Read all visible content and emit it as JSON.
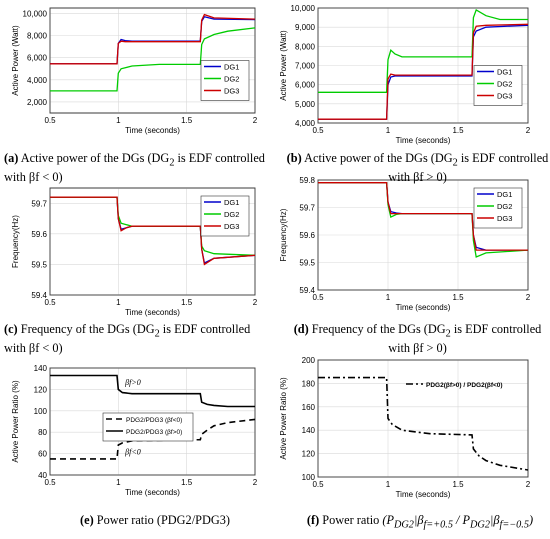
{
  "figure": {
    "captions": [
      {
        "tag": "(a)",
        "line1": "Active power of the DGs (DG",
        "sub": "2",
        "line1b": " is EDF controlled",
        "line2": "with  βf < 0)"
      },
      {
        "tag": "(b)",
        "line1": "Active power of the DGs (DG",
        "sub": "2",
        "line1b": " is EDF controlled",
        "line2": "with  βf > 0)"
      },
      {
        "tag": "(c)",
        "line1": "Frequency of the DGs (DG",
        "sub": "2",
        "line1b": " is EDF controlled",
        "line2": "with  βf < 0)"
      },
      {
        "tag": "(d)",
        "line1": "Frequency of the DGs (DG",
        "sub": "2",
        "line1b": " is EDF controlled",
        "line2": "with  βf > 0)"
      },
      {
        "tag": "(e)",
        "line1": "Power ratio  (PDG2/PDG3)",
        "sub": "",
        "line1b": "",
        "line2": ""
      },
      {
        "tag": "(f)",
        "line1": "Power ratio",
        "sub": "",
        "line1b": "",
        "line2": ""
      }
    ]
  },
  "chart_data": [
    {
      "id": "a",
      "type": "line",
      "xlabel": "Time (seconds)",
      "ylabel": "Active Power (Watt)",
      "xlim": [
        0.5,
        2
      ],
      "ylim": [
        1000,
        10500
      ],
      "xticks": [
        0.5,
        1,
        1.5,
        2
      ],
      "yticks": [
        2000,
        4000,
        6000,
        8000,
        10000
      ],
      "grid": true,
      "legend": "center-right",
      "series": [
        {
          "name": "DG1",
          "color": "#0000cc",
          "x": [
            0.5,
            0.99,
            1.0,
            1.02,
            1.05,
            1.1,
            1.6,
            1.61,
            1.63,
            1.7,
            2.0
          ],
          "y": [
            5450,
            5450,
            7300,
            7650,
            7550,
            7500,
            7500,
            9300,
            9700,
            9500,
            9450
          ]
        },
        {
          "name": "DG2",
          "color": "#00cc00",
          "x": [
            0.5,
            0.99,
            1.0,
            1.02,
            1.1,
            1.3,
            1.6,
            1.61,
            1.63,
            1.7,
            1.8,
            2.0
          ],
          "y": [
            3000,
            3000,
            4600,
            5000,
            5250,
            5400,
            5400,
            7200,
            7700,
            8100,
            8400,
            8700
          ]
        },
        {
          "name": "DG3",
          "color": "#cc0000",
          "x": [
            0.5,
            0.99,
            1.0,
            1.02,
            1.05,
            1.1,
            1.6,
            1.61,
            1.63,
            1.7,
            2.0
          ],
          "y": [
            5450,
            5450,
            7300,
            7500,
            7450,
            7450,
            7450,
            9400,
            9900,
            9600,
            9500
          ]
        }
      ]
    },
    {
      "id": "b",
      "type": "line",
      "xlabel": "Time (seconds)",
      "ylabel": "Active Power (Watt)",
      "xlim": [
        0.5,
        2
      ],
      "ylim": [
        4000,
        10000
      ],
      "xticks": [
        0.5,
        1,
        1.5,
        2
      ],
      "yticks": [
        4000,
        5000,
        6000,
        7000,
        8000,
        9000,
        10000
      ],
      "grid": true,
      "legend": "center-right",
      "series": [
        {
          "name": "DG1",
          "color": "#0000cc",
          "x": [
            0.5,
            0.99,
            1.0,
            1.02,
            1.05,
            1.1,
            1.6,
            1.61,
            1.63,
            1.7,
            2.0
          ],
          "y": [
            4200,
            4200,
            6000,
            6400,
            6450,
            6450,
            6450,
            8500,
            8800,
            9000,
            9100
          ]
        },
        {
          "name": "DG2",
          "color": "#00cc00",
          "x": [
            0.5,
            0.99,
            1.0,
            1.02,
            1.05,
            1.1,
            1.6,
            1.61,
            1.63,
            1.7,
            1.8,
            2.0
          ],
          "y": [
            5600,
            5600,
            7300,
            7800,
            7600,
            7450,
            7450,
            9500,
            9900,
            9600,
            9400,
            9400
          ]
        },
        {
          "name": "DG3",
          "color": "#cc0000",
          "x": [
            0.5,
            0.99,
            1.0,
            1.02,
            1.05,
            1.1,
            1.6,
            1.61,
            1.63,
            1.7,
            2.0
          ],
          "y": [
            4200,
            4200,
            6300,
            6550,
            6500,
            6500,
            6500,
            8700,
            9050,
            9100,
            9150
          ]
        }
      ]
    },
    {
      "id": "c",
      "type": "line",
      "xlabel": "Time (seconds)",
      "ylabel": "Frequency(Hz)",
      "xlim": [
        0.5,
        2
      ],
      "ylim": [
        59.4,
        59.75
      ],
      "xticks": [
        0.5,
        1,
        1.5,
        2
      ],
      "yticks": [
        59.4,
        59.5,
        59.6,
        59.7
      ],
      "grid": true,
      "legend": "top-right",
      "series": [
        {
          "name": "DG1",
          "color": "#0000cc",
          "x": [
            0.5,
            0.99,
            1.0,
            1.02,
            1.06,
            1.1,
            1.6,
            1.61,
            1.63,
            1.7,
            2.0
          ],
          "y": [
            59.72,
            59.72,
            59.65,
            59.615,
            59.62,
            59.625,
            59.625,
            59.55,
            59.505,
            59.52,
            59.53
          ]
        },
        {
          "name": "DG2",
          "color": "#00cc00",
          "x": [
            0.5,
            0.99,
            1.0,
            1.02,
            1.06,
            1.1,
            1.6,
            1.61,
            1.63,
            1.7,
            2.0
          ],
          "y": [
            59.72,
            59.72,
            59.66,
            59.635,
            59.63,
            59.625,
            59.625,
            59.56,
            59.545,
            59.535,
            59.53
          ]
        },
        {
          "name": "DG3",
          "color": "#cc0000",
          "x": [
            0.5,
            0.99,
            1.0,
            1.02,
            1.06,
            1.1,
            1.6,
            1.61,
            1.63,
            1.7,
            2.0
          ],
          "y": [
            59.72,
            59.72,
            59.65,
            59.61,
            59.62,
            59.625,
            59.625,
            59.55,
            59.5,
            59.52,
            59.53
          ]
        }
      ]
    },
    {
      "id": "d",
      "type": "line",
      "xlabel": "Time (seconds)",
      "ylabel": "Frequency(Hz)",
      "xlim": [
        0.5,
        2
      ],
      "ylim": [
        59.4,
        59.8
      ],
      "xticks": [
        0.5,
        1,
        1.5,
        2
      ],
      "yticks": [
        59.4,
        59.5,
        59.6,
        59.7,
        59.8
      ],
      "grid": true,
      "legend": "top-right",
      "series": [
        {
          "name": "DG1",
          "color": "#0000cc",
          "x": [
            0.5,
            0.99,
            1.0,
            1.02,
            1.06,
            1.1,
            1.6,
            1.61,
            1.63,
            1.7,
            2.0
          ],
          "y": [
            59.79,
            59.79,
            59.72,
            59.685,
            59.68,
            59.678,
            59.678,
            59.6,
            59.555,
            59.545,
            59.545
          ]
        },
        {
          "name": "DG2",
          "color": "#00cc00",
          "x": [
            0.5,
            0.99,
            1.0,
            1.02,
            1.06,
            1.1,
            1.6,
            1.61,
            1.63,
            1.7,
            2.0
          ],
          "y": [
            59.79,
            59.79,
            59.71,
            59.665,
            59.675,
            59.678,
            59.678,
            59.58,
            59.52,
            59.535,
            59.545
          ]
        },
        {
          "name": "DG3",
          "color": "#cc0000",
          "x": [
            0.5,
            0.99,
            1.0,
            1.02,
            1.06,
            1.1,
            1.6,
            1.61,
            1.63,
            1.7,
            2.0
          ],
          "y": [
            59.79,
            59.79,
            59.72,
            59.678,
            59.678,
            59.678,
            59.678,
            59.6,
            59.545,
            59.545,
            59.545
          ]
        }
      ]
    },
    {
      "id": "e",
      "type": "line",
      "xlabel": "Time (seconds)",
      "ylabel": "Active Power Ratio (%)",
      "xlim": [
        0.5,
        2
      ],
      "ylim": [
        40,
        140
      ],
      "xticks": [
        0.5,
        1,
        1.5,
        2
      ],
      "yticks": [
        40,
        60,
        80,
        100,
        120,
        140
      ],
      "grid": true,
      "legend": "center-left",
      "annotations": [
        {
          "text": "βf>0",
          "x": 1.05,
          "y": 124
        },
        {
          "text": "βf<0",
          "x": 1.05,
          "y": 59
        }
      ],
      "series": [
        {
          "name": "PDG2/PDG3 (βf<0)",
          "color": "#000000",
          "dash": "6,4",
          "x": [
            0.5,
            0.99,
            1.0,
            1.03,
            1.1,
            1.6,
            1.61,
            1.65,
            1.7,
            1.8,
            2.0
          ],
          "y": [
            55,
            55,
            68,
            70,
            72,
            73,
            78,
            82,
            86,
            89,
            92
          ]
        },
        {
          "name": "PDG2/PDG3 (βf>0)",
          "color": "#000000",
          "dash": "",
          "x": [
            0.5,
            0.99,
            1.0,
            1.03,
            1.1,
            1.6,
            1.61,
            1.65,
            1.7,
            1.8,
            2.0
          ],
          "y": [
            133,
            133,
            120,
            117,
            116,
            116,
            108,
            106,
            105,
            104,
            104
          ]
        }
      ]
    },
    {
      "id": "f",
      "type": "line",
      "xlabel": "Time (seconds)",
      "ylabel": "Active Power Ratio (%)",
      "xlim": [
        0.5,
        2
      ],
      "ylim": [
        100,
        200
      ],
      "xticks": [
        0.5,
        1,
        1.5,
        2
      ],
      "yticks": [
        100,
        120,
        140,
        160,
        180,
        200
      ],
      "grid": true,
      "legend": "top-right",
      "series": [
        {
          "name": "PDG2(βf>0) / PDG2(βf<0)",
          "color": "#000000",
          "dash": "7,3,2,3",
          "x": [
            0.5,
            0.99,
            1.0,
            1.03,
            1.1,
            1.3,
            1.6,
            1.61,
            1.65,
            1.7,
            1.8,
            2.0
          ],
          "y": [
            185,
            185,
            150,
            145,
            140,
            137,
            136,
            124,
            118,
            114,
            110,
            106
          ]
        }
      ]
    }
  ]
}
